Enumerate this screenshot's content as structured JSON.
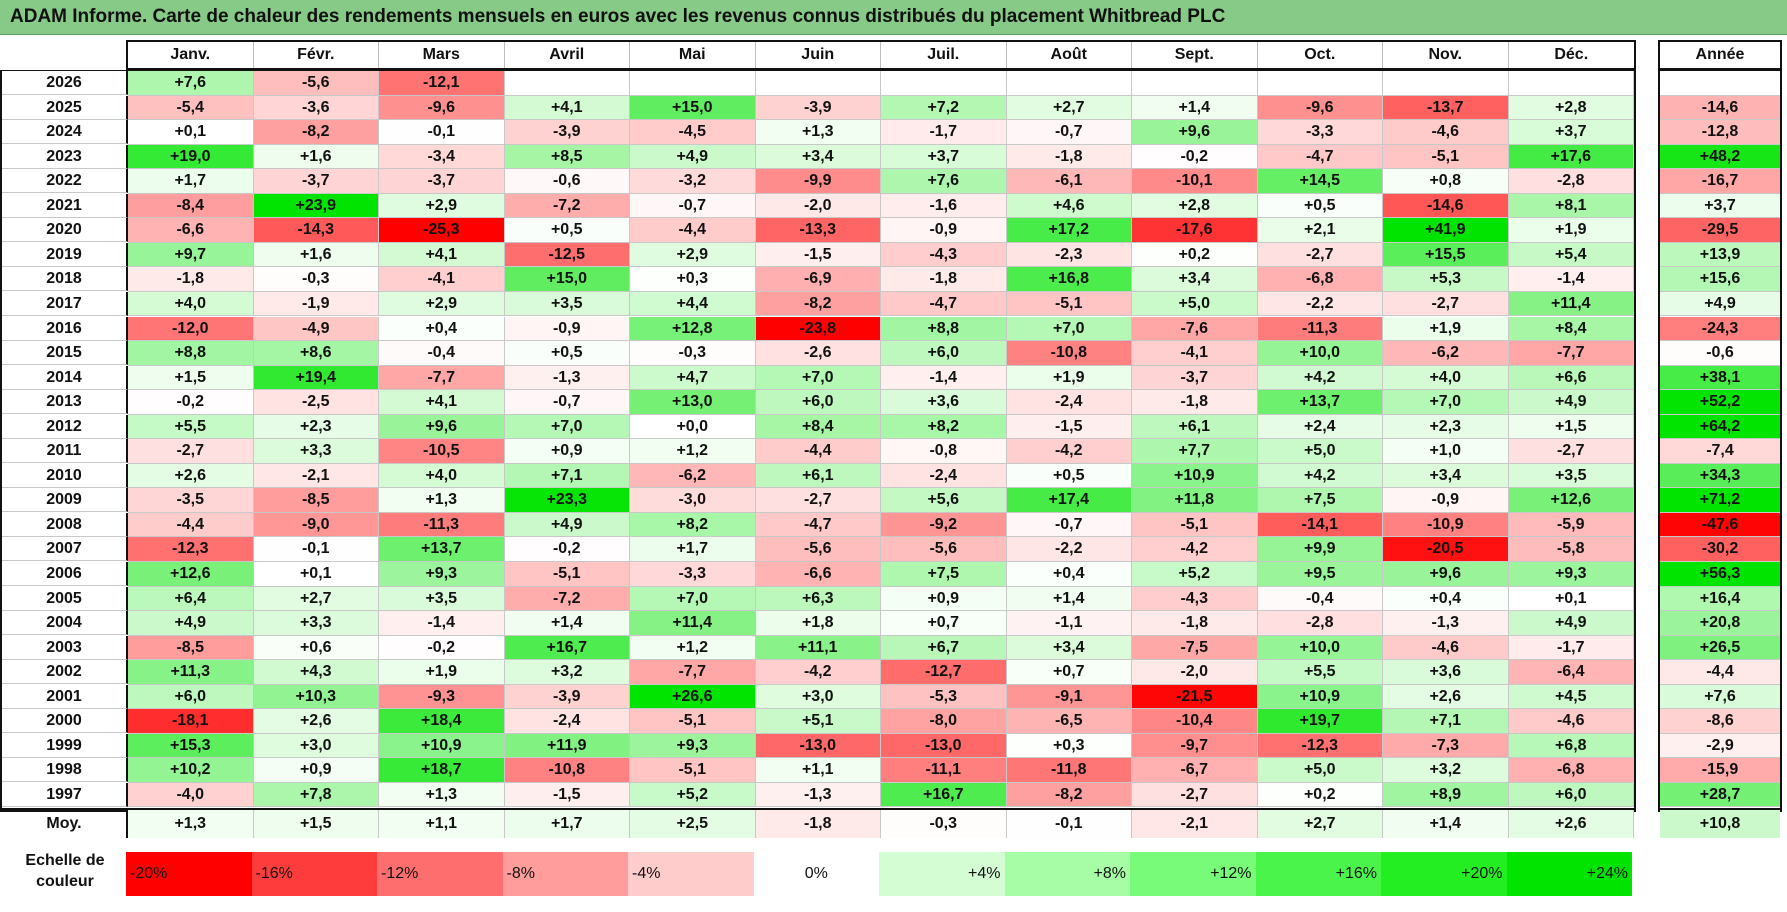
{
  "title": "ADAM Informe. Carte de chaleur des rendements mensuels en euros avec les revenus connus distribués du placement Whitbread PLC",
  "chart_data": {
    "type": "heatmap",
    "title": "ADAM Informe. Carte de chaleur des rendements mensuels en euros avec les revenus connus distribués du placement Whitbread PLC",
    "columns": [
      "Janv.",
      "Févr.",
      "Mars",
      "Avril",
      "Mai",
      "Juin",
      "Juil.",
      "Août",
      "Sept.",
      "Oct.",
      "Nov.",
      "Déc."
    ],
    "year_header": "Année",
    "rows": [
      {
        "year": "2026",
        "values": [
          "+7,6",
          "-5,6",
          "-12,1",
          "",
          "",
          "",
          "",
          "",
          "",
          "",
          "",
          ""
        ],
        "annual": ""
      },
      {
        "year": "2025",
        "values": [
          "-5,4",
          "-3,6",
          "-9,6",
          "+4,1",
          "+15,0",
          "-3,9",
          "+7,2",
          "+2,7",
          "+1,4",
          "-9,6",
          "-13,7",
          "+2,8"
        ],
        "annual": "-14,6"
      },
      {
        "year": "2024",
        "values": [
          "+0,1",
          "-8,2",
          "-0,1",
          "-3,9",
          "-4,5",
          "+1,3",
          "-1,7",
          "-0,7",
          "+9,6",
          "-3,3",
          "-4,6",
          "+3,7"
        ],
        "annual": "-12,8"
      },
      {
        "year": "2023",
        "values": [
          "+19,0",
          "+1,6",
          "-3,4",
          "+8,5",
          "+4,9",
          "+3,4",
          "+3,7",
          "-1,8",
          "-0,2",
          "-4,7",
          "-5,1",
          "+17,6"
        ],
        "annual": "+48,2"
      },
      {
        "year": "2022",
        "values": [
          "+1,7",
          "-3,7",
          "-3,7",
          "-0,6",
          "-3,2",
          "-9,9",
          "+7,6",
          "-6,1",
          "-10,1",
          "+14,5",
          "+0,8",
          "-2,8"
        ],
        "annual": "-16,7"
      },
      {
        "year": "2021",
        "values": [
          "-8,4",
          "+23,9",
          "+2,9",
          "-7,2",
          "-0,7",
          "-2,0",
          "-1,6",
          "+4,6",
          "+2,8",
          "+0,5",
          "-14,6",
          "+8,1"
        ],
        "annual": "+3,7"
      },
      {
        "year": "2020",
        "values": [
          "-6,6",
          "-14,3",
          "-25,3",
          "+0,5",
          "-4,4",
          "-13,3",
          "-0,9",
          "+17,2",
          "-17,6",
          "+2,1",
          "+41,9",
          "+1,9"
        ],
        "annual": "-29,5"
      },
      {
        "year": "2019",
        "values": [
          "+9,7",
          "+1,6",
          "+4,1",
          "-12,5",
          "+2,9",
          "-1,5",
          "-4,3",
          "-2,3",
          "+0,2",
          "-2,7",
          "+15,5",
          "+5,4"
        ],
        "annual": "+13,9"
      },
      {
        "year": "2018",
        "values": [
          "-1,8",
          "-0,3",
          "-4,1",
          "+15,0",
          "+0,3",
          "-6,9",
          "-1,8",
          "+16,8",
          "+3,4",
          "-6,8",
          "+5,3",
          "-1,4"
        ],
        "annual": "+15,6"
      },
      {
        "year": "2017",
        "values": [
          "+4,0",
          "-1,9",
          "+2,9",
          "+3,5",
          "+4,4",
          "-8,2",
          "-4,7",
          "-5,1",
          "+5,0",
          "-2,2",
          "-2,7",
          "+11,4"
        ],
        "annual": "+4,9"
      },
      {
        "year": "2016",
        "values": [
          "-12,0",
          "-4,9",
          "+0,4",
          "-0,9",
          "+12,8",
          "-23,8",
          "+8,8",
          "+7,0",
          "-7,6",
          "-11,3",
          "+1,9",
          "+8,4"
        ],
        "annual": "-24,3"
      },
      {
        "year": "2015",
        "values": [
          "+8,8",
          "+8,6",
          "-0,4",
          "+0,5",
          "-0,3",
          "-2,6",
          "+6,0",
          "-10,8",
          "-4,1",
          "+10,0",
          "-6,2",
          "-7,7"
        ],
        "annual": "-0,6"
      },
      {
        "year": "2014",
        "values": [
          "+1,5",
          "+19,4",
          "-7,7",
          "-1,3",
          "+4,7",
          "+7,0",
          "-1,4",
          "+1,9",
          "-3,7",
          "+4,2",
          "+4,0",
          "+6,6"
        ],
        "annual": "+38,1"
      },
      {
        "year": "2013",
        "values": [
          "-0,2",
          "-2,5",
          "+4,1",
          "-0,7",
          "+13,0",
          "+6,0",
          "+3,6",
          "-2,4",
          "-1,8",
          "+13,7",
          "+7,0",
          "+4,9"
        ],
        "annual": "+52,2"
      },
      {
        "year": "2012",
        "values": [
          "+5,5",
          "+2,3",
          "+9,6",
          "+7,0",
          "+0,0",
          "+8,4",
          "+8,2",
          "-1,5",
          "+6,1",
          "+2,4",
          "+2,3",
          "+1,5"
        ],
        "annual": "+64,2"
      },
      {
        "year": "2011",
        "values": [
          "-2,7",
          "+3,3",
          "-10,5",
          "+0,9",
          "+1,2",
          "-4,4",
          "-0,8",
          "-4,2",
          "+7,7",
          "+5,0",
          "+1,0",
          "-2,7"
        ],
        "annual": "-7,4"
      },
      {
        "year": "2010",
        "values": [
          "+2,6",
          "-2,1",
          "+4,0",
          "+7,1",
          "-6,2",
          "+6,1",
          "-2,4",
          "+0,5",
          "+10,9",
          "+4,2",
          "+3,4",
          "+3,5"
        ],
        "annual": "+34,3"
      },
      {
        "year": "2009",
        "values": [
          "-3,5",
          "-8,5",
          "+1,3",
          "+23,3",
          "-3,0",
          "-2,7",
          "+5,6",
          "+17,4",
          "+11,8",
          "+7,5",
          "-0,9",
          "+12,6"
        ],
        "annual": "+71,2"
      },
      {
        "year": "2008",
        "values": [
          "-4,4",
          "-9,0",
          "-11,3",
          "+4,9",
          "+8,2",
          "-4,7",
          "-9,2",
          "-0,7",
          "-5,1",
          "-14,1",
          "-10,9",
          "-5,9"
        ],
        "annual": "-47,6"
      },
      {
        "year": "2007",
        "values": [
          "-12,3",
          "-0,1",
          "+13,7",
          "-0,2",
          "+1,7",
          "-5,6",
          "-5,6",
          "-2,2",
          "-4,2",
          "+9,9",
          "-20,5",
          "-5,8"
        ],
        "annual": "-30,2"
      },
      {
        "year": "2006",
        "values": [
          "+12,6",
          "+0,1",
          "+9,3",
          "-5,1",
          "-3,3",
          "-6,6",
          "+7,5",
          "+0,4",
          "+5,2",
          "+9,5",
          "+9,6",
          "+9,3"
        ],
        "annual": "+56,3"
      },
      {
        "year": "2005",
        "values": [
          "+6,4",
          "+2,7",
          "+3,5",
          "-7,2",
          "+7,0",
          "+6,3",
          "+0,9",
          "+1,4",
          "-4,3",
          "-0,4",
          "+0,4",
          "+0,1"
        ],
        "annual": "+16,4"
      },
      {
        "year": "2004",
        "values": [
          "+4,9",
          "+3,3",
          "-1,4",
          "+1,4",
          "+11,4",
          "+1,8",
          "+0,7",
          "-1,1",
          "-1,8",
          "-2,8",
          "-1,3",
          "+4,9"
        ],
        "annual": "+20,8"
      },
      {
        "year": "2003",
        "values": [
          "-8,5",
          "+0,6",
          "-0,2",
          "+16,7",
          "+1,2",
          "+11,1",
          "+6,7",
          "+3,4",
          "-7,5",
          "+10,0",
          "-4,6",
          "-1,7"
        ],
        "annual": "+26,5"
      },
      {
        "year": "2002",
        "values": [
          "+11,3",
          "+4,3",
          "+1,9",
          "+3,2",
          "-7,7",
          "-4,2",
          "-12,7",
          "+0,7",
          "-2,0",
          "+5,5",
          "+3,6",
          "-6,4"
        ],
        "annual": "-4,4"
      },
      {
        "year": "2001",
        "values": [
          "+6,0",
          "+10,3",
          "-9,3",
          "-3,9",
          "+26,6",
          "+3,0",
          "-5,3",
          "-9,1",
          "-21,5",
          "+10,9",
          "+2,6",
          "+4,5"
        ],
        "annual": "+7,6"
      },
      {
        "year": "2000",
        "values": [
          "-18,1",
          "+2,6",
          "+18,4",
          "-2,4",
          "-5,1",
          "+5,1",
          "-8,0",
          "-6,5",
          "-10,4",
          "+19,7",
          "+7,1",
          "-4,6"
        ],
        "annual": "-8,6"
      },
      {
        "year": "1999",
        "values": [
          "+15,3",
          "+3,0",
          "+10,9",
          "+11,9",
          "+9,3",
          "-13,0",
          "-13,0",
          "+0,3",
          "-9,7",
          "-12,3",
          "-7,3",
          "+6,8"
        ],
        "annual": "-2,9"
      },
      {
        "year": "1998",
        "values": [
          "+10,2",
          "+0,9",
          "+18,7",
          "-10,8",
          "-5,1",
          "+1,1",
          "-11,1",
          "-11,8",
          "-6,7",
          "+5,0",
          "+3,2",
          "-6,8"
        ],
        "annual": "-15,9"
      },
      {
        "year": "1997",
        "values": [
          "-4,0",
          "+7,8",
          "+1,3",
          "-1,5",
          "+5,2",
          "-1,3",
          "+16,7",
          "-8,2",
          "-2,7",
          "+0,2",
          "+8,9",
          "+6,0"
        ],
        "annual": "+28,7"
      }
    ],
    "average": {
      "label": "Moy.",
      "values": [
        "+1,3",
        "+1,5",
        "+1,1",
        "+1,7",
        "+2,5",
        "-1,8",
        "-0,3",
        "-0,1",
        "-2,1",
        "+2,7",
        "+1,4",
        "+2,6"
      ],
      "annual": "+10,8"
    },
    "legend": {
      "label": "Echelle de couleur",
      "steps": [
        {
          "label": "-20%",
          "color": "#ff0000"
        },
        {
          "label": "-16%",
          "color": "#ff3c3c"
        },
        {
          "label": "-12%",
          "color": "#ff6e6e"
        },
        {
          "label": "-8%",
          "color": "#ff9c9c"
        },
        {
          "label": "-4%",
          "color": "#ffcccc"
        },
        {
          "label": "0%",
          "color": "#ffffff"
        },
        {
          "label": "+4%",
          "color": "#d4fdd4"
        },
        {
          "label": "+8%",
          "color": "#a6fda6"
        },
        {
          "label": "+12%",
          "color": "#78fb78"
        },
        {
          "label": "+16%",
          "color": "#4af44a"
        },
        {
          "label": "+20%",
          "color": "#22ee22"
        },
        {
          "label": "+24%",
          "color": "#00e400"
        }
      ]
    }
  }
}
